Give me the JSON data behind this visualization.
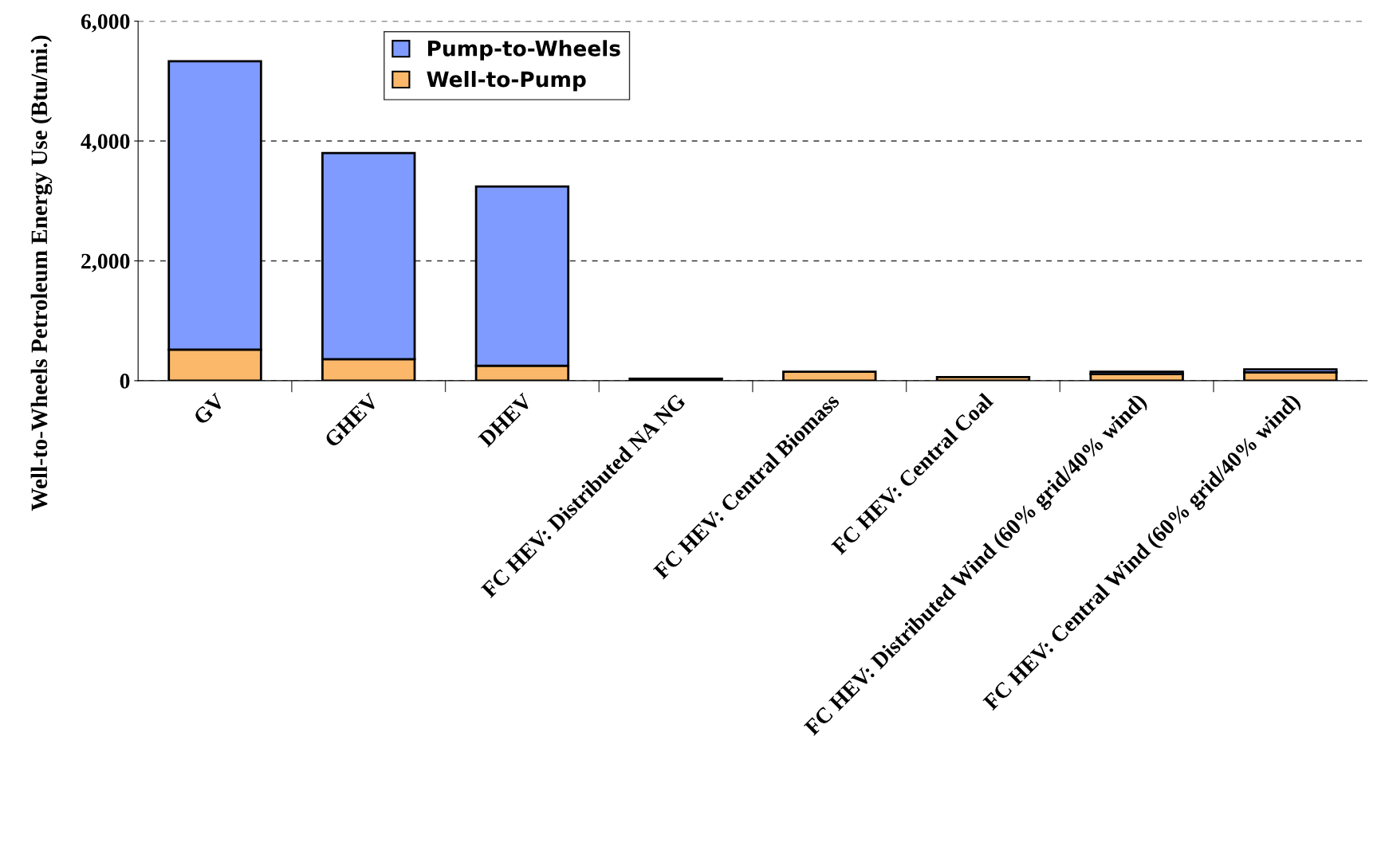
{
  "chart_data": {
    "type": "bar",
    "stacked": true,
    "ylabel": "Well-to-Wheels Petroleum Energy Use (Btu/mi.)",
    "categories": [
      "GV",
      "GHEV",
      "DHEV",
      "FC HEV: Distributed NA NG",
      "FC HEV: Central Biomass",
      "FC HEV: Central Coal",
      "FC HEV: Distributed Wind (60% grid/40% wind)",
      "FC HEV: Central Wind (60% grid/40% wind)"
    ],
    "series": [
      {
        "name": "Well-to-Pump",
        "color": "#fcb86a",
        "values": [
          520,
          360,
          250,
          35,
          150,
          60,
          110,
          140
        ]
      },
      {
        "name": "Pump-to-Wheels",
        "color": "#7f9bff",
        "values": [
          4810,
          3440,
          2990,
          null,
          null,
          null,
          40,
          50
        ]
      }
    ],
    "ylim": [
      0,
      6000
    ],
    "yticks": [
      {
        "value": 0,
        "label": "0"
      },
      {
        "value": 2000,
        "label": "2,000"
      },
      {
        "value": 4000,
        "label": "4,000"
      },
      {
        "value": 6000,
        "label": "6,000"
      }
    ],
    "grid": "y",
    "legend": "top"
  }
}
